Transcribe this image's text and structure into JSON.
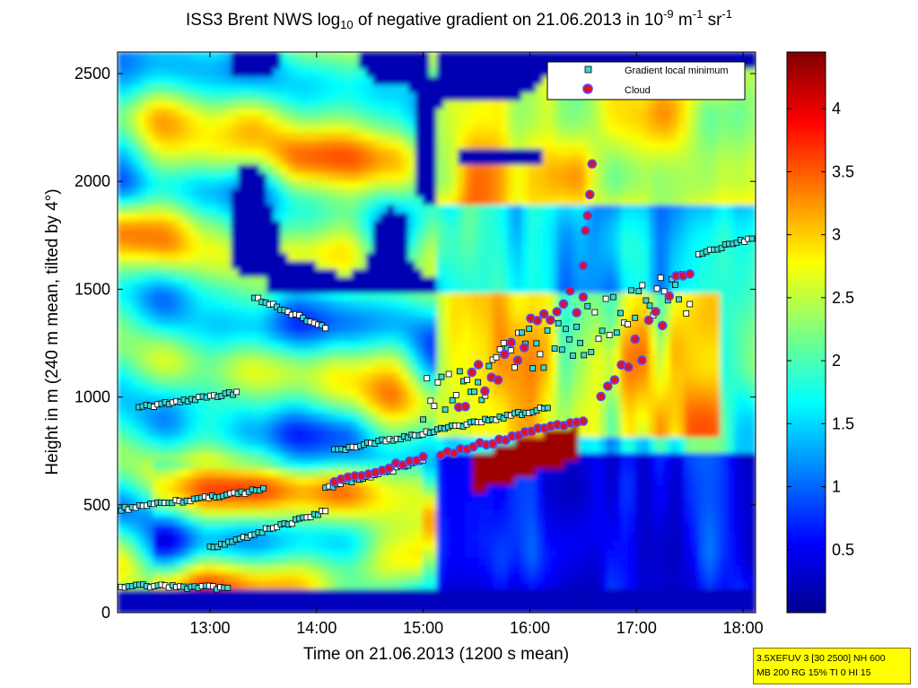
{
  "title": {
    "prefix": "ISS3 Brent NWS log",
    "prefix_sub": "10",
    "middle": " of negative gradient on 21.06.2013 in 10",
    "exp1": "-9",
    "unit1": " m",
    "exp2": "-1",
    "unit2": " sr",
    "exp3": "-1"
  },
  "chart_data": {
    "type": "heatmap",
    "xlabel": "Time on 21.06.2013 (1200 s mean)",
    "ylabel": "Height in m (240 m mean, tilted by 4°)",
    "xlim": [
      "12:08",
      "18:07"
    ],
    "ylim": [
      0,
      2600
    ],
    "x_ticks": [
      "13:00",
      "14:00",
      "15:00",
      "16:00",
      "17:00",
      "18:00"
    ],
    "y_ticks": [
      0,
      500,
      1000,
      1500,
      2000,
      2500
    ],
    "y_tick_labels": [
      "0",
      "500",
      "1000",
      "1500",
      "2000",
      "2500"
    ],
    "colorbar": {
      "range": [
        0,
        4.45
      ],
      "ticks": [
        0.5,
        1,
        1.5,
        2,
        2.5,
        3,
        3.5,
        4
      ],
      "tick_labels": [
        "0.5",
        "1",
        "1.5",
        "2",
        "2.5",
        "3",
        "3.5",
        "4"
      ],
      "colormap": "jet"
    },
    "legend": {
      "placement": "top-right",
      "entries": [
        {
          "label": "Gradient local minimum",
          "marker": "square",
          "color": "#3ad6d6"
        },
        {
          "label": "Cloud",
          "marker": "circle",
          "color": "#e0102a"
        }
      ]
    },
    "series": [
      {
        "name": "Gradient local minimum",
        "marker": "square",
        "layers": [
          {
            "x_start": "12:10",
            "x_end": "13:30",
            "y_start": 480,
            "y_end": 570
          },
          {
            "x_start": "12:10",
            "x_end": "13:10",
            "y_start": 125,
            "y_end": 115
          },
          {
            "x_start": "13:00",
            "x_end": "14:05",
            "y_start": 300,
            "y_end": 470
          },
          {
            "x_start": "12:20",
            "x_end": "13:15",
            "y_start": 950,
            "y_end": 1020
          },
          {
            "x_start": "13:25",
            "x_end": "14:05",
            "y_start": 1460,
            "y_end": 1320
          },
          {
            "x_start": "14:05",
            "x_end": "15:00",
            "y_start": 580,
            "y_end": 700
          },
          {
            "x_start": "14:10",
            "x_end": "16:10",
            "y_start": 750,
            "y_end": 950
          },
          {
            "x_start": "15:00",
            "x_end": "17:30",
            "y_start": 1000,
            "y_end": 1500
          },
          {
            "x_start": "17:35",
            "x_end": "18:05",
            "y_start": 1660,
            "y_end": 1740
          }
        ]
      },
      {
        "name": "Cloud",
        "marker": "circle",
        "layers": [
          {
            "x_start": "14:10",
            "x_end": "15:00",
            "y_start": 600,
            "y_end": 720
          },
          {
            "x_start": "15:10",
            "x_end": "16:30",
            "y_start": 730,
            "y_end": 900
          },
          {
            "x_start": "15:20",
            "x_end": "16:30",
            "y_start": 1000,
            "y_end": 1500
          },
          {
            "x_start": "16:30",
            "x_end": "16:35",
            "y_start": 1600,
            "y_end": 2080
          },
          {
            "x_start": "16:40",
            "x_end": "17:30",
            "y_start": 950,
            "y_end": 1600
          }
        ]
      }
    ]
  },
  "settings_box": {
    "line1": "3.5XEFUV 3 [30 2500] NH 600",
    "line2": "MB 200 RG 15% TI 0 HI 15"
  }
}
